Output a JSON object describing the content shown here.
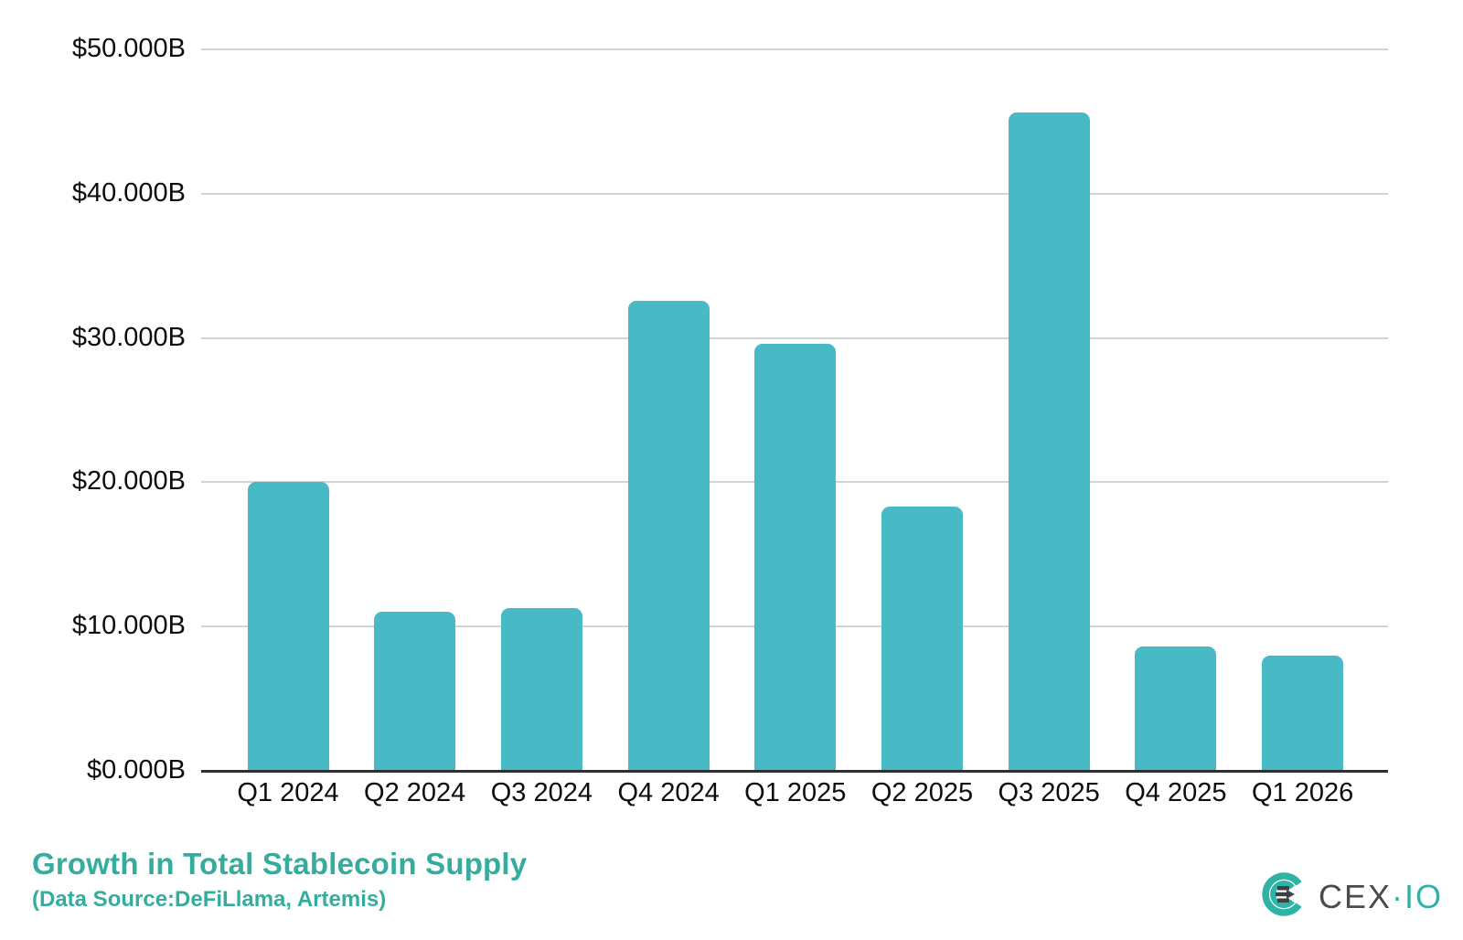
{
  "chart_data": {
    "type": "bar",
    "title": "Growth in Total Stablecoin Supply",
    "subtitle": "(Data Source:DeFiLlama, Artemis)",
    "categories": [
      "Q1 2024",
      "Q2 2024",
      "Q3 2024",
      "Q4 2024",
      "Q1 2025",
      "Q2 2025",
      "Q3 2025",
      "Q4 2025",
      "Q1 2026"
    ],
    "values": [
      20.0,
      11.0,
      11.3,
      32.6,
      29.6,
      18.3,
      45.6,
      8.6,
      8.0
    ],
    "y_ticks": [
      "$0.000B",
      "$10.000B",
      "$20.000B",
      "$30.000B",
      "$40.000B",
      "$50.000B"
    ],
    "ylim": [
      0,
      50
    ],
    "grid": true,
    "legend": "none",
    "bar_color": "#48BAC6",
    "xlabel": "",
    "ylabel": ""
  },
  "logo": {
    "name": "CEX.IO",
    "cex": "CEX",
    "io": "·IO",
    "teal": "#2FB3A6",
    "dark": "#4B4B4D"
  }
}
